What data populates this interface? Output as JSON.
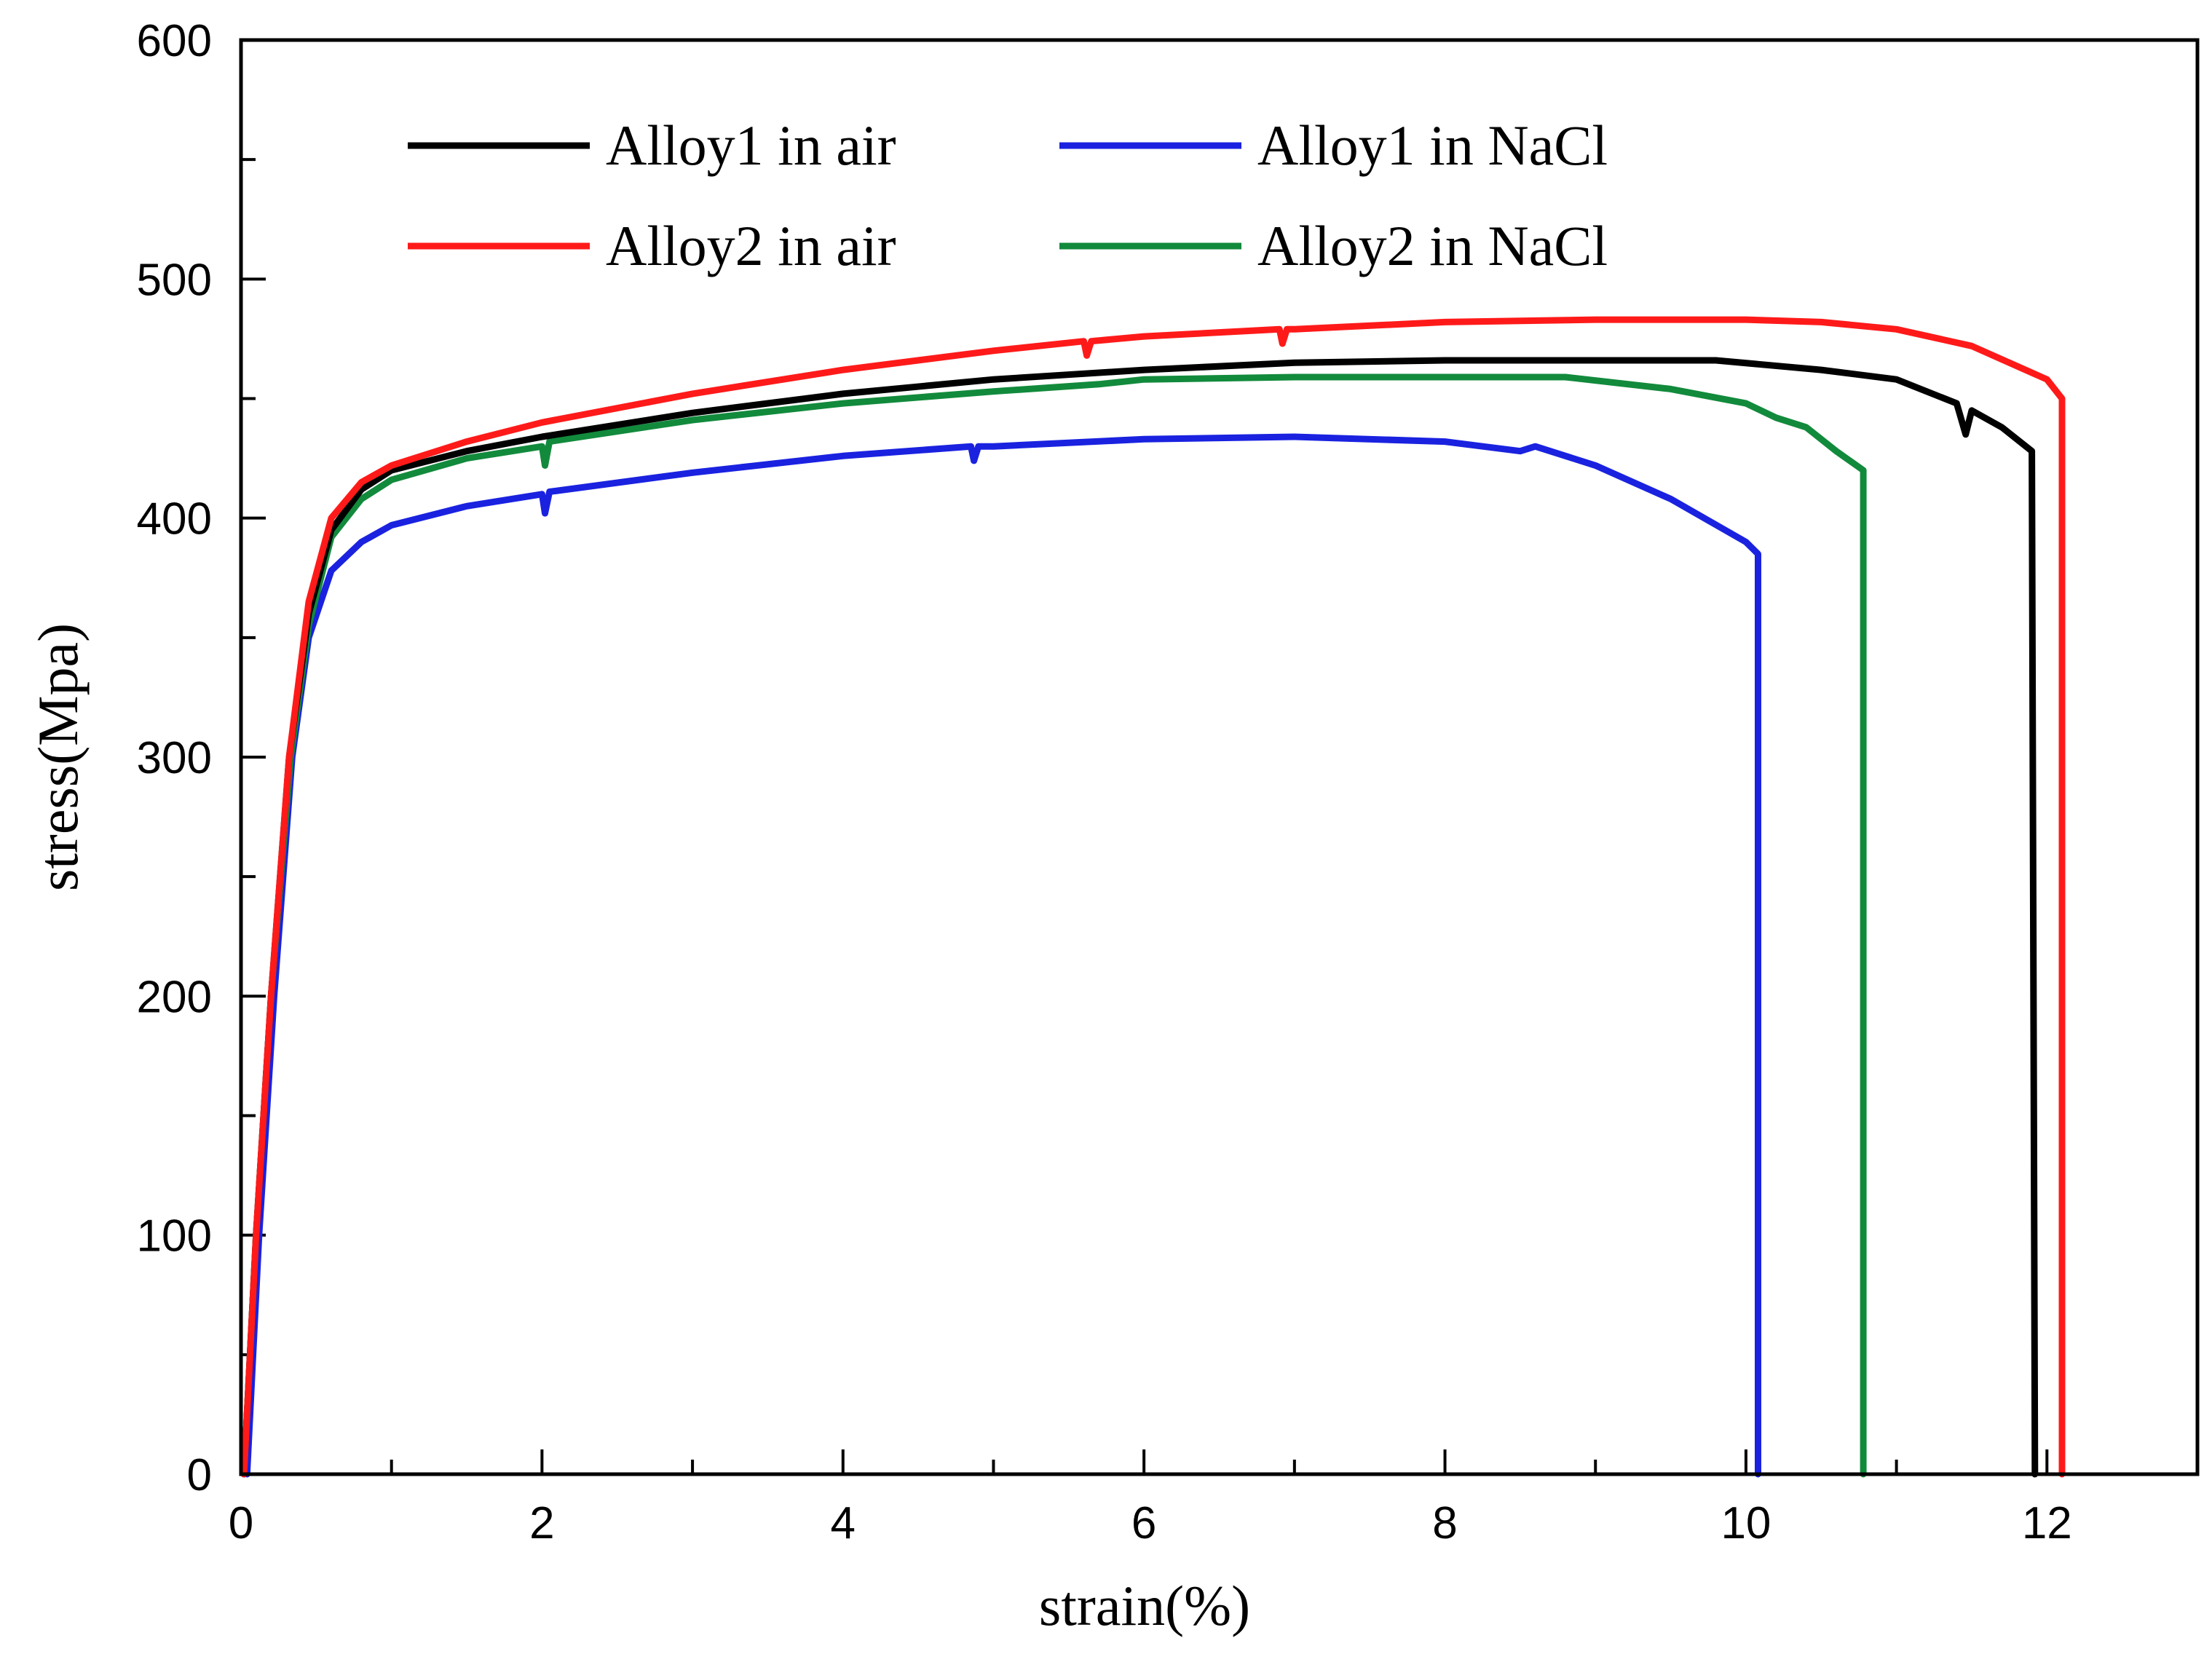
{
  "chart_data": {
    "type": "line",
    "xlabel": "strain(%)",
    "ylabel": "stress(Mpa)",
    "xlim": [
      0,
      13
    ],
    "ylim": [
      0,
      600
    ],
    "x_ticks": [
      0,
      2,
      4,
      6,
      8,
      10,
      12
    ],
    "y_ticks": [
      0,
      100,
      200,
      300,
      400,
      500,
      600
    ],
    "grid": false,
    "legend_position": "top-left",
    "series": [
      {
        "name": "Alloy1 in air",
        "color": "#000000",
        "points": [
          [
            0.02,
            0
          ],
          [
            0.1,
            100
          ],
          [
            0.2,
            200
          ],
          [
            0.32,
            300
          ],
          [
            0.45,
            360
          ],
          [
            0.6,
            395
          ],
          [
            0.8,
            412
          ],
          [
            1,
            420
          ],
          [
            1.5,
            428
          ],
          [
            2,
            434
          ],
          [
            3,
            444
          ],
          [
            4,
            452
          ],
          [
            5,
            458
          ],
          [
            6,
            462
          ],
          [
            7,
            465
          ],
          [
            8,
            466
          ],
          [
            9,
            466
          ],
          [
            9.8,
            466
          ],
          [
            10.5,
            462
          ],
          [
            11,
            458
          ],
          [
            11.4,
            448
          ],
          [
            11.46,
            435
          ],
          [
            11.5,
            445
          ],
          [
            11.7,
            438
          ],
          [
            11.9,
            428
          ],
          [
            11.92,
            0
          ]
        ]
      },
      {
        "name": "Alloy1 in NaCl",
        "color": "#1a22e0",
        "points": [
          [
            0.04,
            0
          ],
          [
            0.12,
            100
          ],
          [
            0.22,
            200
          ],
          [
            0.34,
            300
          ],
          [
            0.45,
            350
          ],
          [
            0.6,
            378
          ],
          [
            0.8,
            390
          ],
          [
            1,
            397
          ],
          [
            1.5,
            405
          ],
          [
            2,
            410
          ],
          [
            2.02,
            402
          ],
          [
            2.05,
            411
          ],
          [
            3,
            419
          ],
          [
            4,
            426
          ],
          [
            4.85,
            430
          ],
          [
            4.87,
            424
          ],
          [
            4.9,
            430
          ],
          [
            5,
            430
          ],
          [
            6,
            433
          ],
          [
            7,
            434
          ],
          [
            8,
            432
          ],
          [
            8.5,
            428
          ],
          [
            8.6,
            430
          ],
          [
            9,
            422
          ],
          [
            9.5,
            408
          ],
          [
            10,
            390
          ],
          [
            10.08,
            385
          ],
          [
            10.08,
            0
          ]
        ]
      },
      {
        "name": "Alloy2 in air",
        "color": "#ff1a1a",
        "points": [
          [
            0.02,
            0
          ],
          [
            0.1,
            100
          ],
          [
            0.2,
            200
          ],
          [
            0.32,
            300
          ],
          [
            0.45,
            365
          ],
          [
            0.6,
            400
          ],
          [
            0.8,
            415
          ],
          [
            1,
            422
          ],
          [
            1.5,
            432
          ],
          [
            2,
            440
          ],
          [
            3,
            452
          ],
          [
            4,
            462
          ],
          [
            5,
            470
          ],
          [
            5.6,
            474
          ],
          [
            5.62,
            468
          ],
          [
            5.65,
            474
          ],
          [
            6,
            476
          ],
          [
            6.9,
            479
          ],
          [
            6.92,
            473
          ],
          [
            6.95,
            479
          ],
          [
            7,
            479
          ],
          [
            8,
            482
          ],
          [
            9,
            483
          ],
          [
            10,
            483
          ],
          [
            10.5,
            482
          ],
          [
            11,
            479
          ],
          [
            11.5,
            472
          ],
          [
            12,
            458
          ],
          [
            12.1,
            450
          ],
          [
            12.1,
            0
          ]
        ]
      },
      {
        "name": "Alloy2 in NaCl",
        "color": "#128a3c",
        "points": [
          [
            0.02,
            0
          ],
          [
            0.1,
            100
          ],
          [
            0.2,
            200
          ],
          [
            0.33,
            300
          ],
          [
            0.45,
            355
          ],
          [
            0.6,
            392
          ],
          [
            0.8,
            408
          ],
          [
            1,
            416
          ],
          [
            1.5,
            425
          ],
          [
            2,
            430
          ],
          [
            2.02,
            422
          ],
          [
            2.05,
            432
          ],
          [
            3,
            441
          ],
          [
            4,
            448
          ],
          [
            5,
            453
          ],
          [
            5.7,
            456
          ],
          [
            6,
            458
          ],
          [
            7,
            459
          ],
          [
            8,
            459
          ],
          [
            8.8,
            459
          ],
          [
            9.5,
            454
          ],
          [
            10,
            448
          ],
          [
            10.2,
            442
          ],
          [
            10.4,
            438
          ],
          [
            10.6,
            428
          ],
          [
            10.78,
            420
          ],
          [
            10.78,
            0
          ]
        ]
      }
    ]
  }
}
